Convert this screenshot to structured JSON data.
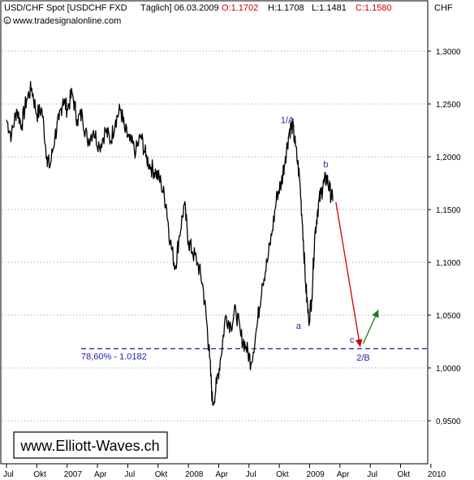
{
  "header": {
    "instrument": "USD/CHF Spot [USDCHF FXD",
    "period": "Täglich] 06.03.2009",
    "open": "O:1.1702",
    "high": "H:1.1708",
    "low": "L:1.1481",
    "close": "C:1.1580",
    "source": "www.tradesignalonline.com",
    "source_icon": "copyright-icon"
  },
  "unit_label": "CHF",
  "watermark": "www.Elliott-Waves.ch",
  "colors": {
    "price": "#000000",
    "grid": "#999999",
    "fib_line": "#1a1a8c",
    "wave_label": "#2222aa",
    "down_arrow": "#cc0000",
    "up_arrow": "#1a7a1a",
    "header_close": "#cc0000"
  },
  "chart_data": {
    "type": "line",
    "title": "USD/CHF Spot [USDCHF FXD Täglich]",
    "ylabel": "CHF",
    "ylim": [
      0.895,
      1.34
    ],
    "grid": "horizontal dotted",
    "y_ticks": [
      {
        "value": 1.3,
        "label": "1,3000"
      },
      {
        "value": 1.25,
        "label": "1,2500"
      },
      {
        "value": 1.2,
        "label": "1,2000"
      },
      {
        "value": 1.15,
        "label": "1,1500"
      },
      {
        "value": 1.1,
        "label": "1,1000"
      },
      {
        "value": 1.05,
        "label": "1,0500"
      },
      {
        "value": 1.0,
        "label": "1,0000"
      },
      {
        "value": 0.95,
        "label": "0,9500"
      }
    ],
    "x_ticks": [
      {
        "t": 0,
        "label": "Jul"
      },
      {
        "t": 3,
        "label": "Okt"
      },
      {
        "t": 6,
        "label": "2007"
      },
      {
        "t": 9,
        "label": "Apr"
      },
      {
        "t": 12,
        "label": "Jul"
      },
      {
        "t": 15,
        "label": "Okt"
      },
      {
        "t": 18,
        "label": "2008"
      },
      {
        "t": 21,
        "label": "Apr"
      },
      {
        "t": 24,
        "label": "Jul"
      },
      {
        "t": 27,
        "label": "Okt"
      },
      {
        "t": 30,
        "label": "2009"
      },
      {
        "t": 33,
        "label": "Apr"
      },
      {
        "t": 36,
        "label": "Jul"
      },
      {
        "t": 39,
        "label": "Okt"
      },
      {
        "t": 42,
        "label": "2010"
      }
    ],
    "series": [
      {
        "points": [
          [
            0,
            1.235
          ],
          [
            0.5,
            1.22
          ],
          [
            1,
            1.245
          ],
          [
            1.5,
            1.23
          ],
          [
            2,
            1.255
          ],
          [
            2.5,
            1.265
          ],
          [
            3,
            1.24
          ],
          [
            3.5,
            1.245
          ],
          [
            4,
            1.2
          ],
          [
            4.3,
            1.19
          ],
          [
            4.8,
            1.22
          ],
          [
            5.2,
            1.235
          ],
          [
            5.6,
            1.255
          ],
          [
            6,
            1.245
          ],
          [
            6.5,
            1.26
          ],
          [
            7,
            1.235
          ],
          [
            7.5,
            1.24
          ],
          [
            8,
            1.215
          ],
          [
            8.6,
            1.225
          ],
          [
            9.2,
            1.21
          ],
          [
            9.8,
            1.225
          ],
          [
            10.3,
            1.215
          ],
          [
            10.8,
            1.235
          ],
          [
            11.3,
            1.245
          ],
          [
            11.7,
            1.225
          ],
          [
            12.2,
            1.215
          ],
          [
            12.8,
            1.205
          ],
          [
            13.3,
            1.22
          ],
          [
            13.8,
            1.2
          ],
          [
            14.3,
            1.19
          ],
          [
            14.8,
            1.185
          ],
          [
            15.3,
            1.175
          ],
          [
            15.8,
            1.155
          ],
          [
            16.2,
            1.12
          ],
          [
            16.7,
            1.095
          ],
          [
            17.1,
            1.125
          ],
          [
            17.6,
            1.155
          ],
          [
            18,
            1.12
          ],
          [
            18.4,
            1.11
          ],
          [
            18.9,
            1.1
          ],
          [
            19.4,
            1.08
          ],
          [
            19.8,
            1.045
          ],
          [
            20.1,
            1.01
          ],
          [
            20.4,
            0.965
          ],
          [
            20.8,
            0.985
          ],
          [
            21.2,
            1.01
          ],
          [
            21.7,
            1.05
          ],
          [
            22.2,
            1.04
          ],
          [
            22.7,
            1.055
          ],
          [
            23.2,
            1.03
          ],
          [
            23.7,
            1.02
          ],
          [
            24.2,
            1.005
          ],
          [
            24.8,
            1.04
          ],
          [
            25.3,
            1.08
          ],
          [
            25.8,
            1.1
          ],
          [
            26.3,
            1.13
          ],
          [
            26.8,
            1.165
          ],
          [
            27.2,
            1.175
          ],
          [
            27.6,
            1.2
          ],
          [
            28,
            1.225
          ],
          [
            28.3,
            1.23
          ],
          [
            28.6,
            1.21
          ],
          [
            29.0,
            1.18
          ],
          [
            29.3,
            1.135
          ],
          [
            29.6,
            1.08
          ],
          [
            29.9,
            1.045
          ],
          [
            30.2,
            1.065
          ],
          [
            30.5,
            1.125
          ],
          [
            30.8,
            1.15
          ],
          [
            31.1,
            1.165
          ],
          [
            31.4,
            1.175
          ],
          [
            31.7,
            1.18
          ],
          [
            32.0,
            1.168
          ],
          [
            32.3,
            1.158
          ]
        ]
      }
    ],
    "fib_level": {
      "value": 1.0182,
      "label": "78,60% - 1.0182"
    },
    "annotations": [
      {
        "text": "1/A",
        "t": 27.8,
        "y": 1.235
      },
      {
        "text": "b",
        "t": 31.6,
        "y": 1.193
      },
      {
        "text": "a",
        "t": 28.9,
        "y": 1.04
      },
      {
        "text": "c",
        "t": 34.2,
        "y": 1.027
      },
      {
        "text": "2/B",
        "t": 35.3,
        "y": 1.01
      }
    ],
    "arrows": [
      {
        "from_t": 32.6,
        "from_y": 1.157,
        "to_t": 35.0,
        "to_y": 1.02,
        "color": "down"
      },
      {
        "from_t": 35.3,
        "from_y": 1.023,
        "to_t": 36.8,
        "to_y": 1.055,
        "color": "up"
      }
    ]
  }
}
